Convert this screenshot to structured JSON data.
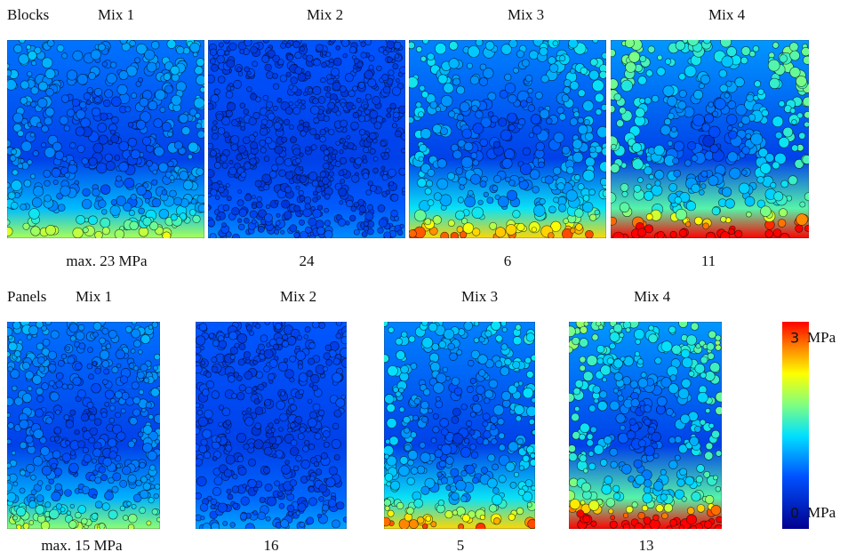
{
  "rows": [
    {
      "label": "Blocks",
      "panels": [
        {
          "title": "Mix 1",
          "caption": "max. 23 MPa"
        },
        {
          "title": "Mix 2",
          "caption": "24"
        },
        {
          "title": "Mix 3",
          "caption": "6"
        },
        {
          "title": "Mix 4",
          "caption": "11"
        }
      ]
    },
    {
      "label": "Panels",
      "panels": [
        {
          "title": "Mix 1",
          "caption": "max. 15 MPa"
        },
        {
          "title": "Mix 2",
          "caption": "16"
        },
        {
          "title": "Mix 3",
          "caption": "5"
        },
        {
          "title": "Mix 4",
          "caption": "13"
        }
      ]
    }
  ],
  "colorbar": {
    "max": {
      "value": 3,
      "unit": "MPa"
    },
    "min": {
      "value": 0,
      "unit": "MPa"
    }
  }
}
